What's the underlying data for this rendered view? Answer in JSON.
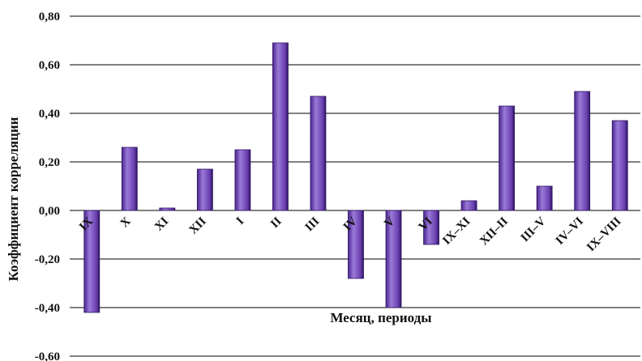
{
  "chart_data": {
    "type": "bar",
    "title": "",
    "xlabel": "Месяц, периоды",
    "ylabel": "Коэффициент корреляции",
    "categories": [
      "IX",
      "X",
      "XI",
      "XII",
      "I",
      "II",
      "III",
      "IV",
      "V",
      "VI",
      "IX–XI",
      "XII–II",
      "III–V",
      "IV–VI",
      "IX–VIII"
    ],
    "values": [
      -0.42,
      0.26,
      0.01,
      0.17,
      0.25,
      0.69,
      0.47,
      -0.28,
      -0.4,
      -0.14,
      0.04,
      0.43,
      0.1,
      0.49,
      0.37
    ],
    "ylim": [
      -0.6,
      0.8
    ],
    "yticks": [
      0.8,
      0.6,
      0.4,
      0.2,
      0.0,
      -0.2,
      -0.4,
      -0.6
    ],
    "ytick_labels": [
      "0,80",
      "0,60",
      "0,40",
      "0,20",
      "0,00",
      "-0,20",
      "-0,40",
      "-0,60"
    ],
    "grid": true,
    "legend": "none",
    "colors": {
      "bar": "#6a3fb0",
      "bar_edge": "#2d1560",
      "bar_shade": "#4b2590",
      "bar_highlight": "#9a7ad8",
      "grid": "#000000"
    }
  }
}
